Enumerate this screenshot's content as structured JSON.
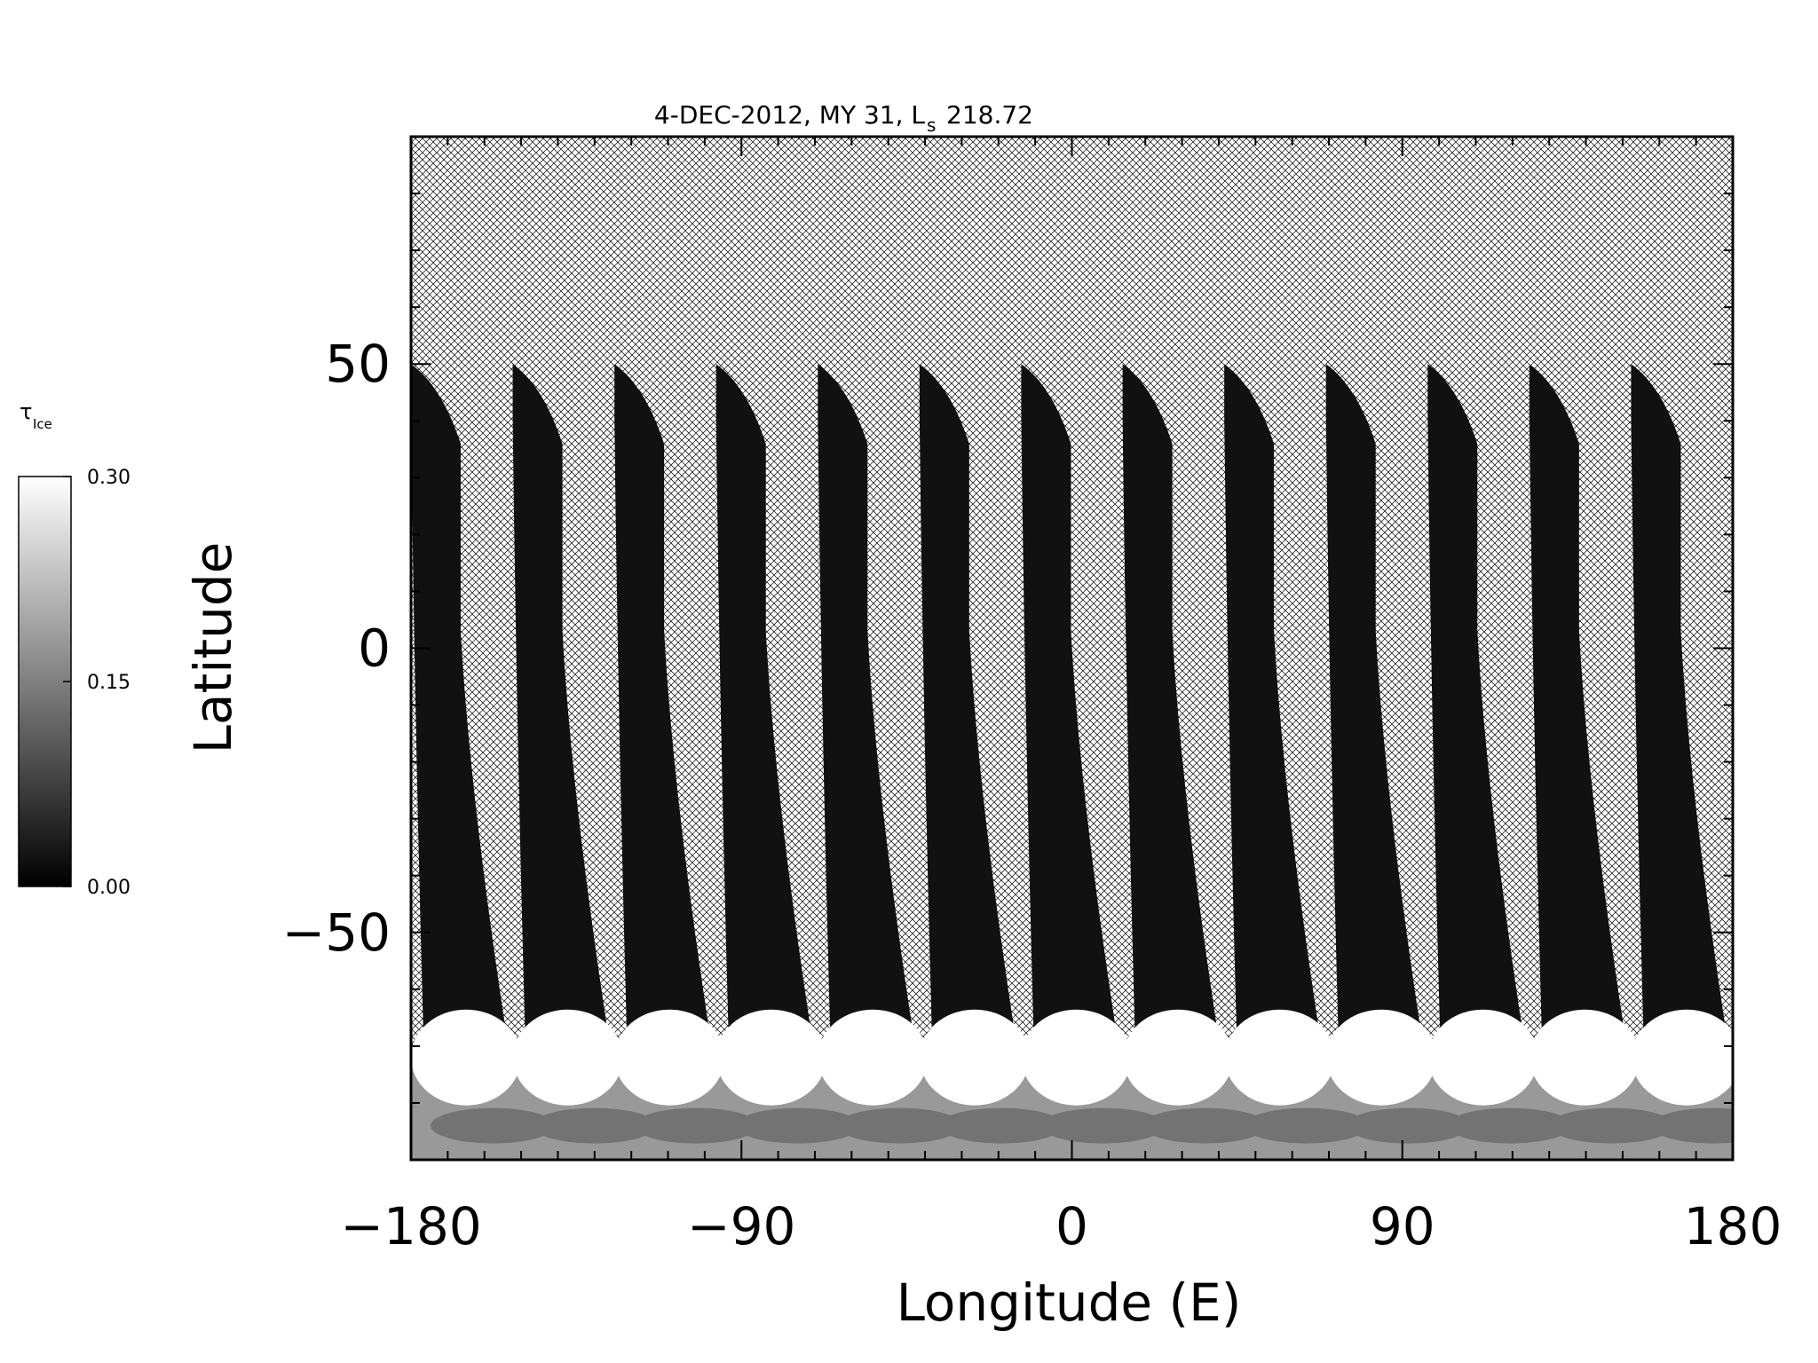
{
  "chart_data": {
    "type": "heatmap",
    "title": "4-DEC-2012, MY 31,  L",
    "title_subscript": "s",
    "title_value": "218.72",
    "xlabel": "Longitude (E)",
    "ylabel": "Latitude",
    "xlim": [
      -180,
      180
    ],
    "ylim": [
      -90,
      90
    ],
    "x_ticks": [
      -180,
      -90,
      0,
      90,
      180
    ],
    "x_tick_labels": [
      "−180",
      "−90",
      "0",
      "90",
      "180"
    ],
    "y_ticks": [
      -50,
      0,
      50
    ],
    "y_tick_labels": [
      "−50",
      "0",
      "50"
    ],
    "colorbar": {
      "label": "τ",
      "label_subscript": "Ice",
      "range": [
        0.0,
        0.3
      ],
      "ticks": [
        0.0,
        0.15,
        0.3
      ],
      "tick_labels": [
        "0.00",
        "0.15",
        "0.30"
      ],
      "colormap": "grayscale",
      "low_color": "#000000",
      "high_color": "#ffffff"
    },
    "no_data_pattern": "crosshatch",
    "swaths": {
      "count": 13,
      "top_edge_longitudes": [
        -180,
        -152.3,
        -124.6,
        -96.9,
        -69.2,
        -41.5,
        -13.8,
        13.8,
        41.5,
        69.2,
        96.9,
        124.6,
        152.3
      ],
      "top_latitude": 50,
      "cloud_boundary_latitude": -65,
      "interior_tau": 0.02,
      "south_cap_tau": 0.3
    }
  }
}
